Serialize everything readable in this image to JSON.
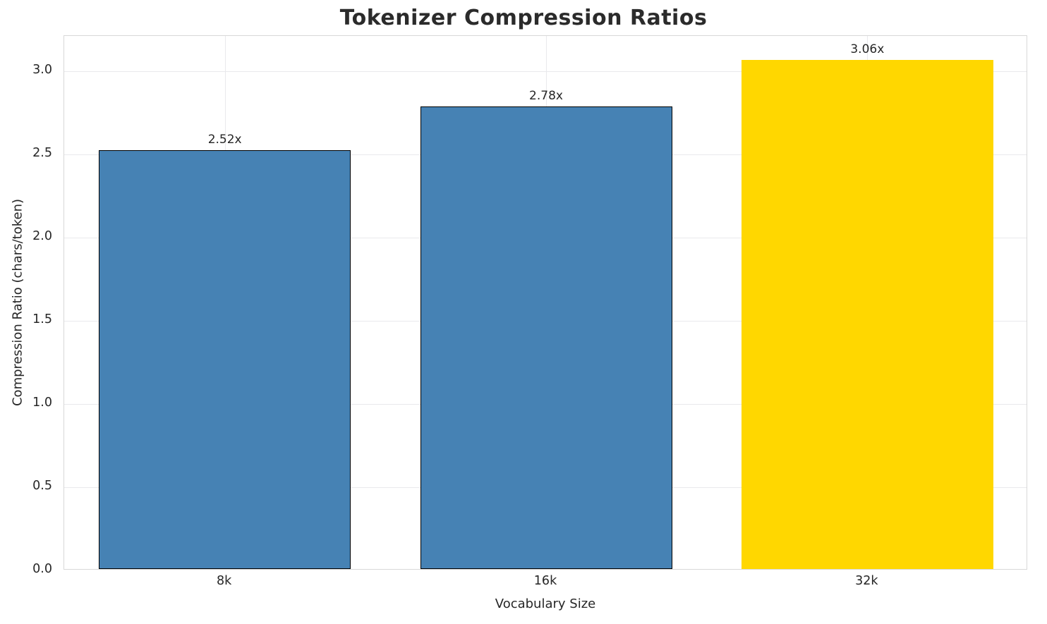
{
  "title": "Tokenizer Compression Ratios",
  "chart_data": {
    "type": "bar",
    "title": "Tokenizer Compression Ratios",
    "xlabel": "Vocabulary Size",
    "ylabel": "Compression Ratio (chars/token)",
    "categories": [
      "8k",
      "16k",
      "32k"
    ],
    "values": [
      2.52,
      2.78,
      3.06
    ],
    "value_labels": [
      "2.52x",
      "2.78x",
      "3.06x"
    ],
    "bar_colors": [
      "#4682b4",
      "#4682b4",
      "#ffd700"
    ],
    "bar_edge_colors": [
      "#000000",
      "#000000",
      null
    ],
    "ylim": [
      0,
      3.213
    ],
    "yticks": [
      0.0,
      0.5,
      1.0,
      1.5,
      2.0,
      2.5,
      3.0
    ],
    "ytick_labels": [
      "0.0",
      "0.5",
      "1.0",
      "1.5",
      "2.0",
      "2.5",
      "3.0"
    ],
    "grid": true,
    "legend_position": "none"
  },
  "colors": {
    "background": "#ffffff",
    "grid": "#e9e9ec",
    "spine": "#d8d8d8",
    "text": "#262626",
    "title": "#2b2b2b",
    "bar_primary": "#4682b4",
    "bar_highlight": "#ffd700"
  }
}
